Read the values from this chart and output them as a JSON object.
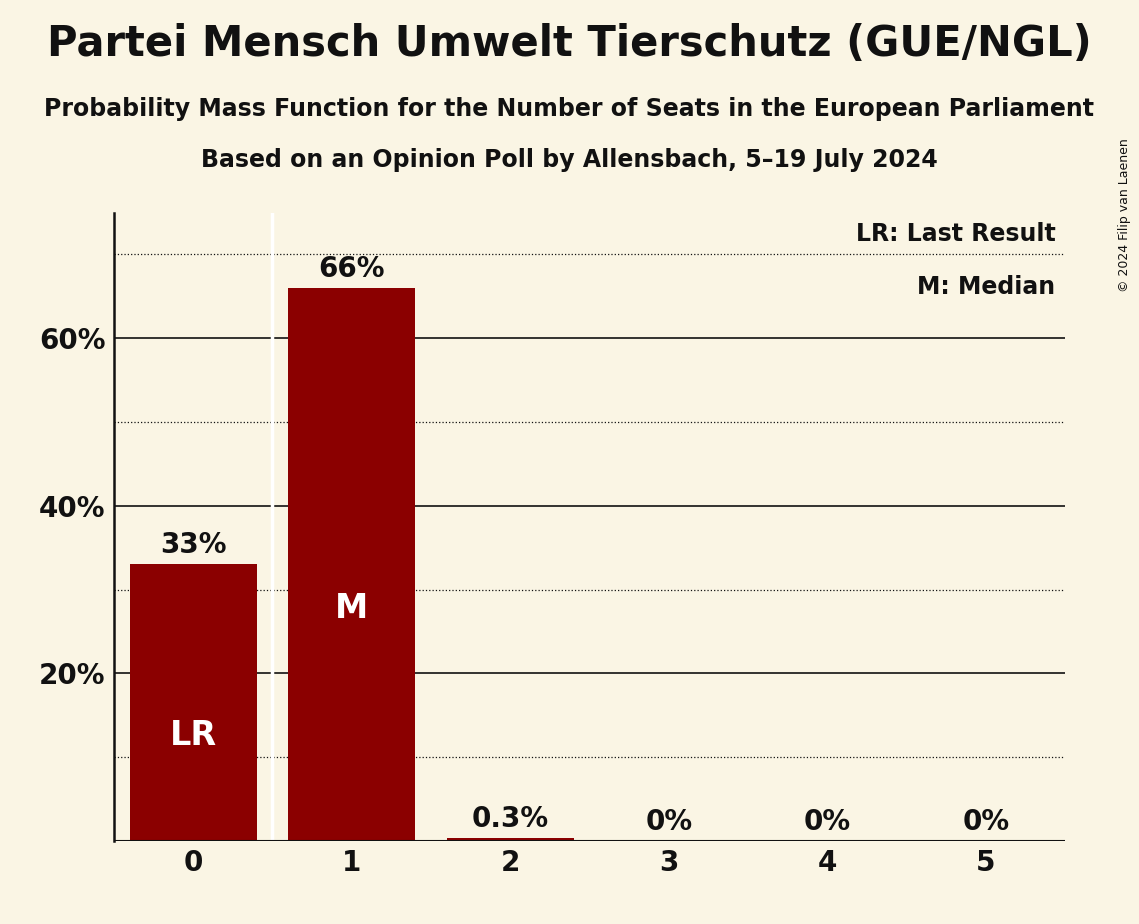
{
  "title": "Partei Mensch Umwelt Tierschutz (GUE/NGL)",
  "subtitle1": "Probability Mass Function for the Number of Seats in the European Parliament",
  "subtitle2": "Based on an Opinion Poll by Allensbach, 5–19 July 2024",
  "copyright": "© 2024 Filip van Laenen",
  "categories": [
    0,
    1,
    2,
    3,
    4,
    5
  ],
  "values": [
    0.33,
    0.66,
    0.003,
    0.0,
    0.0,
    0.0
  ],
  "bar_labels": [
    "33%",
    "66%",
    "0.3%",
    "0%",
    "0%",
    "0%"
  ],
  "bar_color": "#8b0000",
  "background_color": "#faf5e4",
  "text_color": "#111111",
  "bar_text_color": "#ffffff",
  "label_lr": "LR",
  "label_m": "M",
  "lr_bar_index": 0,
  "median_bar_index": 1,
  "legend_lr": "LR: Last Result",
  "legend_m": "M: Median",
  "ylim": [
    0,
    0.75
  ],
  "yticks": [
    0.0,
    0.2,
    0.4,
    0.6
  ],
  "ytick_labels": [
    "",
    "20%",
    "40%",
    "60%"
  ],
  "solid_gridlines": [
    0.2,
    0.4,
    0.6
  ],
  "dotted_gridlines": [
    0.1,
    0.3,
    0.5,
    0.7
  ],
  "title_fontsize": 30,
  "subtitle_fontsize": 17,
  "axis_fontsize": 20,
  "bar_label_fontsize": 20,
  "bar_inner_label_fontsize": 24,
  "legend_fontsize": 17,
  "copyright_fontsize": 9
}
